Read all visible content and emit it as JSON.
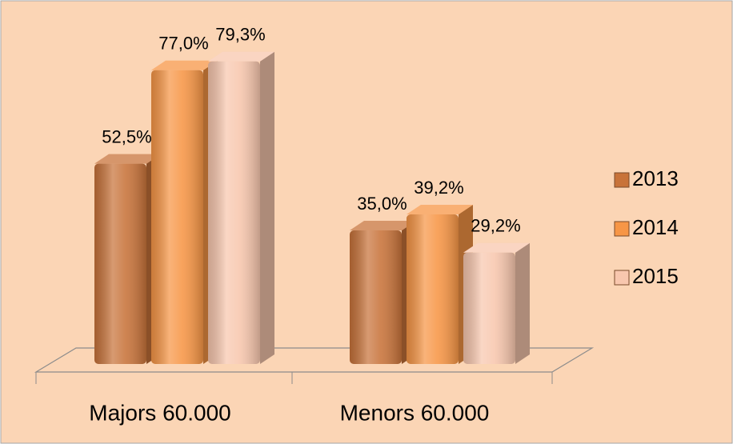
{
  "chart_data": {
    "type": "bar3d",
    "categories": [
      "Majors 60.000",
      "Menors 60.000"
    ],
    "series": [
      {
        "name": "2013",
        "color": "#C8733A",
        "values": [
          52.5,
          35.0
        ],
        "value_labels": [
          "52,5%",
          "35,0%"
        ]
      },
      {
        "name": "2014",
        "color": "#F79646",
        "values": [
          77.0,
          39.2
        ],
        "value_labels": [
          "77,0%",
          "39,2%"
        ]
      },
      {
        "name": "2015",
        "color": "#F8C7AE",
        "values": [
          79.3,
          29.2
        ],
        "value_labels": [
          "79,3%",
          "29,2%"
        ]
      }
    ],
    "legend": "right"
  }
}
